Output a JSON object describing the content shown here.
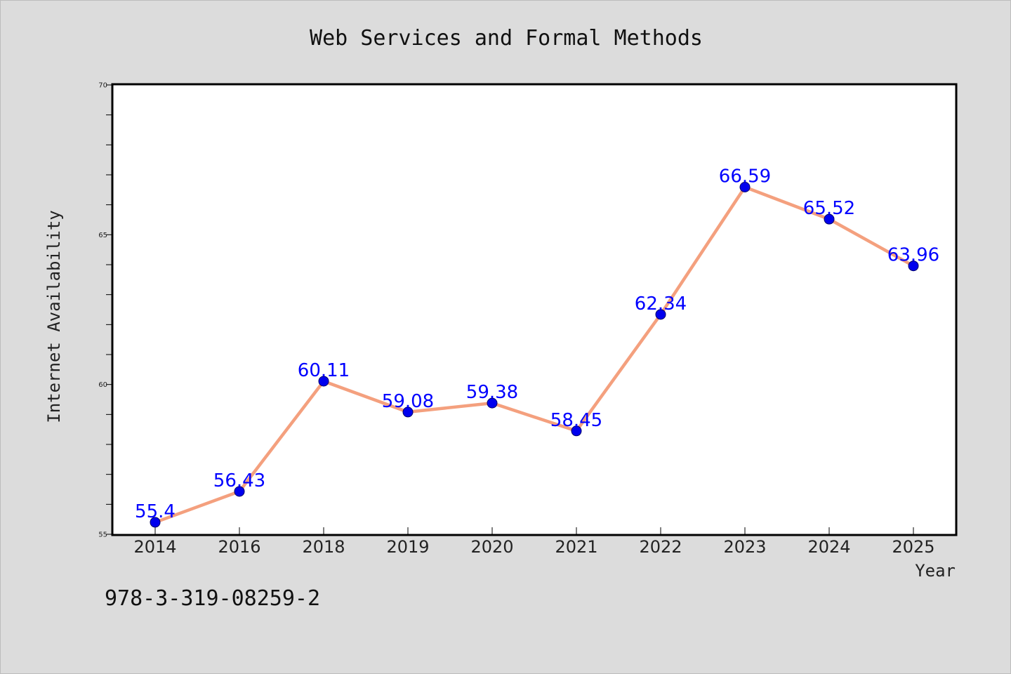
{
  "chart_data": {
    "type": "line",
    "title": "Web Services and Formal Methods",
    "xlabel": "Year",
    "ylabel": "Internet Availability",
    "categories": [
      "2014",
      "2016",
      "2018",
      "2019",
      "2020",
      "2021",
      "2022",
      "2023",
      "2024",
      "2025"
    ],
    "series": [
      {
        "values": [
          55.4,
          56.43,
          60.11,
          59.08,
          59.38,
          58.45,
          62.34,
          66.59,
          65.52,
          63.96
        ],
        "labels": [
          "55.4",
          "56.43",
          "60.11",
          "59.08",
          "59.38",
          "58.45",
          "62.34",
          "66.59",
          "65.52",
          "63.96"
        ]
      }
    ],
    "ylim": [
      55,
      70
    ],
    "yticks": [
      "55",
      "60",
      "65",
      "70"
    ],
    "y_minor_step": 1,
    "grid": false,
    "colors": {
      "line": "#f4a07e",
      "marker": "#0000ee",
      "marker_edge": "#00006a",
      "label": "#0000ff",
      "plot_background": "#ffffff",
      "frame": "#000000"
    }
  },
  "footer": {
    "isbn": "978-3-319-08259-2"
  }
}
